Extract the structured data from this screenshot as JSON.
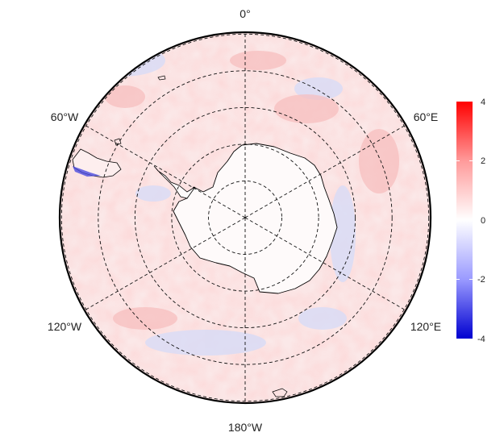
{
  "map": {
    "projection": "south polar stereographic",
    "longitude_labels": {
      "top": "0°",
      "upper_left": "60°W",
      "upper_right": "60°E",
      "lower_left": "120°W",
      "lower_right": "120°E",
      "bottom": "180°W"
    },
    "graticule": {
      "meridians_deg": [
        0,
        60,
        120,
        180,
        240,
        300
      ],
      "parallels_count": 5,
      "style": "dashed"
    },
    "colorbar": {
      "min": -4,
      "max": 4,
      "ticks": [
        "4",
        "2",
        "0",
        "-2",
        "-4"
      ],
      "low_color": "#0000d0",
      "mid_color": "#ffffff",
      "high_color": "#ff0000"
    }
  }
}
